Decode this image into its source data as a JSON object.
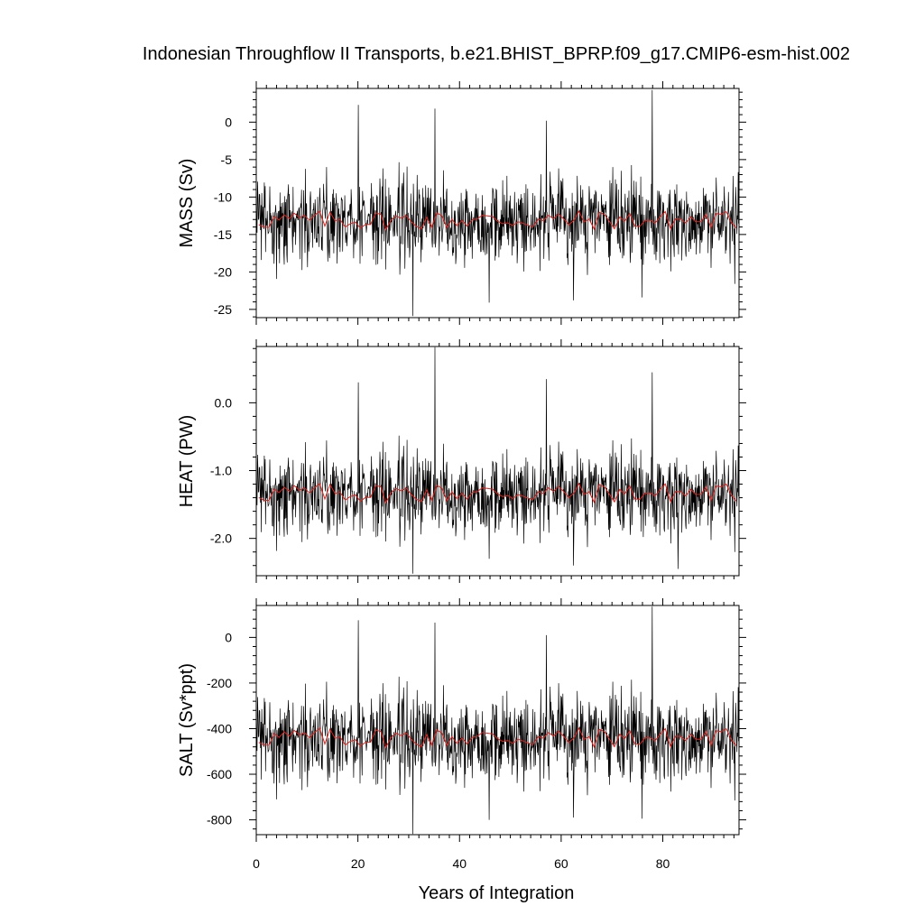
{
  "chart_data": {
    "type": "line",
    "title": "Indonesian Throughflow II Transports, b.e21.BHIST_BPRP.f09_g17.CMIP6-esm-hist.002",
    "xlabel": "Years of Integration",
    "xlim": [
      0,
      95
    ],
    "x_ticks": [
      "0",
      "20",
      "40",
      "60",
      "80"
    ],
    "x_tick_values": [
      0,
      20,
      40,
      60,
      80
    ],
    "colors": {
      "monthly": "#000000",
      "annual_mean": "#e0201b"
    },
    "panels": [
      {
        "ylabel": "MASS (Sv)",
        "ylim": [
          -26.1,
          4.5
        ],
        "y_ticks": [
          "0",
          "-5",
          "-10",
          "-15",
          "-20",
          "-25"
        ],
        "y_tick_values": [
          0,
          -5,
          -10,
          -15,
          -20,
          -25
        ],
        "base_mean": -13.1,
        "noise_amplitude": 5.5,
        "annual_mean_amplitude": 1.3,
        "extremes": [
          {
            "x": 20.1,
            "y": 2.3
          },
          {
            "x": 30.8,
            "y": -25.9
          },
          {
            "x": 35.2,
            "y": 1.8
          },
          {
            "x": 45.8,
            "y": -24.1
          },
          {
            "x": 57.1,
            "y": 0.2
          },
          {
            "x": 62.4,
            "y": -23.8
          },
          {
            "x": 77.9,
            "y": 4.3
          },
          {
            "x": 75.9,
            "y": -23.4
          },
          {
            "x": 94.2,
            "y": -21.6
          }
        ]
      },
      {
        "ylabel": "HEAT (PW)",
        "ylim": [
          -2.55,
          0.83
        ],
        "y_ticks": [
          "0.0",
          "-1.0",
          "-2.0"
        ],
        "y_tick_values": [
          0.0,
          -1.0,
          -2.0
        ],
        "base_mean": -1.33,
        "noise_amplitude": 0.6,
        "annual_mean_amplitude": 0.15,
        "extremes": [
          {
            "x": 20.1,
            "y": 0.3
          },
          {
            "x": 30.8,
            "y": -2.52
          },
          {
            "x": 35.2,
            "y": 0.82
          },
          {
            "x": 45.8,
            "y": -2.3
          },
          {
            "x": 57.1,
            "y": 0.35
          },
          {
            "x": 62.4,
            "y": -2.4
          },
          {
            "x": 77.9,
            "y": 0.45
          },
          {
            "x": 83.0,
            "y": -2.45
          },
          {
            "x": 94.2,
            "y": -2.2
          }
        ]
      },
      {
        "ylabel": "SALT (Sv*ppt)",
        "ylim": [
          -865,
          140
        ],
        "y_ticks": [
          "0",
          "-200",
          "-400",
          "-600",
          "-800"
        ],
        "y_tick_values": [
          0,
          -200,
          -400,
          -600,
          -800
        ],
        "base_mean": -440,
        "noise_amplitude": 190,
        "annual_mean_amplitude": 45,
        "extremes": [
          {
            "x": 20.1,
            "y": 75
          },
          {
            "x": 30.8,
            "y": -862
          },
          {
            "x": 35.2,
            "y": 65
          },
          {
            "x": 45.8,
            "y": -800
          },
          {
            "x": 57.1,
            "y": 10
          },
          {
            "x": 62.4,
            "y": -790
          },
          {
            "x": 77.9,
            "y": 135
          },
          {
            "x": 75.9,
            "y": -795
          },
          {
            "x": 94.2,
            "y": -715
          }
        ]
      }
    ]
  }
}
